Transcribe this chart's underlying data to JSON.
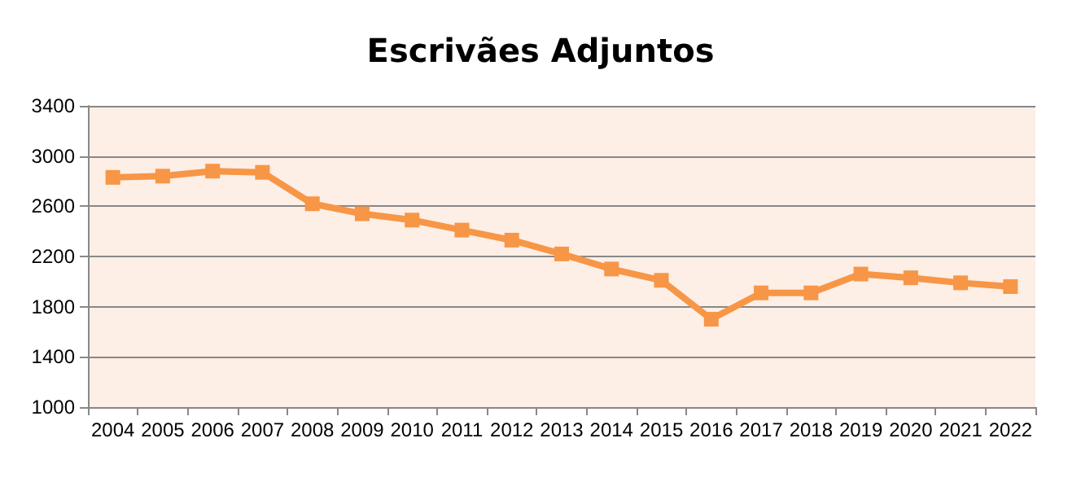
{
  "chart_data": {
    "type": "line",
    "title": "Escrivães Adjuntos",
    "categories": [
      "2004",
      "2005",
      "2006",
      "2007",
      "2008",
      "2009",
      "2010",
      "2011",
      "2012",
      "2013",
      "2014",
      "2015",
      "2016",
      "2017",
      "2018",
      "2019",
      "2020",
      "2021",
      "2022"
    ],
    "series": [
      {
        "color": "#f79646",
        "values": [
          2830,
          2840,
          2880,
          2870,
          2620,
          2540,
          2490,
          2410,
          2330,
          2220,
          2100,
          2010,
          1700,
          1910,
          1910,
          2060,
          2030,
          1990,
          1960
        ]
      }
    ],
    "ylim": [
      1000,
      3400
    ],
    "yticks": [
      1000,
      1400,
      1800,
      2200,
      2600,
      3000,
      3400
    ],
    "grid": "y",
    "marker": "square",
    "line_style": "solid"
  }
}
